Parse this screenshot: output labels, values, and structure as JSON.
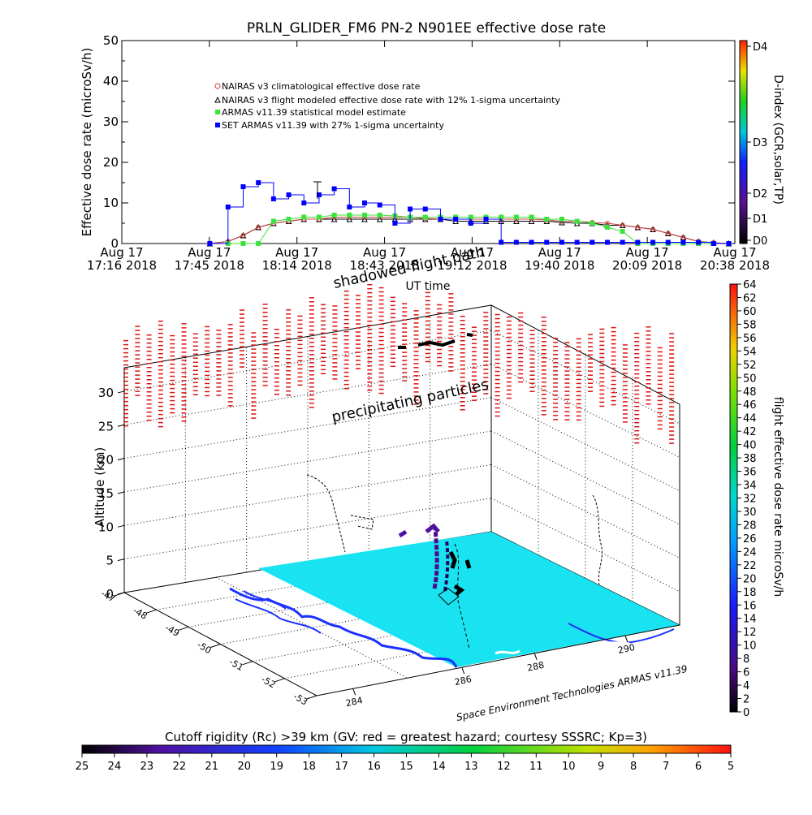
{
  "title": "PRLN_GLIDER_FM6 PN-2 N901EE effective dose rate",
  "colors": {
    "nairas_clim": "#d04040",
    "nairas_flight": "#000000",
    "armas_model": "#3ce33c",
    "set_armas": "#0000ff",
    "terrain": "#19e3f0",
    "coast": "#1a30ff",
    "dose_dash": "#dd1111"
  },
  "dose_chart": {
    "ylabel": "Effective dose rate (microSv/h)",
    "xlabel": "UT time",
    "y_ticks": [
      "0",
      "10",
      "20",
      "30",
      "40",
      "50"
    ],
    "ylim": [
      0,
      50
    ],
    "x_ticks": [
      {
        "top": "Aug 17",
        "bottom": "17:16 2018"
      },
      {
        "top": "Aug 17",
        "bottom": "17:45 2018"
      },
      {
        "top": "Aug 17",
        "bottom": "18:14 2018"
      },
      {
        "top": "Aug 17",
        "bottom": "18:43 2018"
      },
      {
        "top": "Aug 17",
        "bottom": "19:12 2018"
      },
      {
        "top": "Aug 17",
        "bottom": "19:40 2018"
      },
      {
        "top": "Aug 17",
        "bottom": "20:09 2018"
      },
      {
        "top": "Aug 17",
        "bottom": "20:38 2018"
      }
    ],
    "legend": [
      "NAIRAS v3 climatological effective dose rate",
      "NAIRAS v3 flight modeled effective dose rate with 12% 1-sigma uncertainty",
      "ARMAS v11.39 statistical model estimate",
      "SET ARMAS v11.39 with 27% 1-sigma uncertainty"
    ],
    "right_axis_label": "D-index (GCR,solar,TP)",
    "right_axis_ticks": [
      "D0",
      "D1",
      "D2",
      "D3",
      "D4"
    ]
  },
  "chart_data": [
    {
      "type": "line",
      "title": "PRLN_GLIDER_FM6 PN-2 N901EE effective dose rate",
      "xlabel": "UT time",
      "ylabel": "Effective dose rate (microSv/h)",
      "ylim": [
        0,
        50
      ],
      "x_unit": "minutes after 17:16 UT",
      "x": [
        29,
        35,
        40,
        45,
        50,
        55,
        60,
        65,
        70,
        75,
        80,
        85,
        90,
        95,
        100,
        105,
        110,
        115,
        120,
        125,
        130,
        135,
        140,
        145,
        150,
        155,
        160,
        165,
        170,
        175,
        180,
        185,
        190,
        195,
        200
      ],
      "series": [
        {
          "name": "NAIRAS v3 flight modeled effective dose rate with 12% 1-sigma uncertainty",
          "values": [
            0,
            0.5,
            2,
            4,
            5,
            5.5,
            6,
            6,
            6,
            6,
            6,
            6,
            6,
            6,
            6,
            6,
            5.5,
            5.5,
            5.5,
            5.5,
            5.5,
            5.5,
            5.5,
            5.2,
            5,
            5,
            4.5,
            4.5,
            4,
            3.5,
            2.5,
            1.5,
            0.5,
            0.2,
            0
          ]
        },
        {
          "name": "NAIRAS v3 climatological effective dose rate",
          "values": [
            0,
            0.5,
            2,
            4,
            5,
            5.5,
            6,
            6,
            6.5,
            6.5,
            6.5,
            6.5,
            6.5,
            6.5,
            6.2,
            6,
            6,
            6,
            6,
            6,
            6,
            6,
            5.8,
            5.5,
            5.5,
            5.2,
            5,
            4.5,
            4,
            3.5,
            2.5,
            1.5,
            0.5,
            0.2,
            0
          ]
        },
        {
          "name": "ARMAS v11.39 statistical model estimate",
          "values": [
            0,
            0,
            0,
            0,
            5.5,
            6,
            6.5,
            6.5,
            7,
            7,
            7,
            7,
            6.8,
            6.5,
            6.5,
            6.5,
            6.5,
            6.5,
            6.5,
            6.5,
            6.5,
            6.5,
            6,
            6,
            5.5,
            5,
            4,
            3,
            0,
            0,
            0,
            0,
            0,
            0,
            0
          ]
        },
        {
          "name": "SET ARMAS v11.39 with 27% 1-sigma uncertainty",
          "values": [
            0,
            9,
            14,
            15,
            11,
            12,
            10,
            12,
            13.5,
            9,
            10,
            9.5,
            5,
            8.5,
            8.5,
            6,
            6,
            5,
            6,
            0.3,
            0.3,
            0.3,
            0.3,
            0.3,
            0.3,
            0.3,
            0.3,
            0.3,
            0.3,
            0.3,
            0.3,
            0.3,
            0.3,
            0,
            0
          ]
        }
      ]
    }
  ],
  "scene": {
    "zlabel": "Altitude (km)",
    "z_ticks": [
      "0",
      "5",
      "10",
      "15",
      "20",
      "25",
      "30"
    ],
    "lat_ticks": [
      "-47",
      "-48",
      "-49",
      "-50",
      "-51",
      "-52",
      "-53"
    ],
    "lon_ticks": [
      "284",
      "286",
      "288",
      "290"
    ],
    "shadowed_label": "shadowed flight path",
    "precip_label": "precipitating particles",
    "credit": "Space Environment Technologies ARMAS v11.39"
  },
  "right_colorbar": {
    "label": "flight effective dose rate microSv/h",
    "ticks": [
      "0",
      "2",
      "4",
      "6",
      "8",
      "10",
      "12",
      "14",
      "16",
      "18",
      "20",
      "22",
      "24",
      "26",
      "28",
      "30",
      "32",
      "34",
      "36",
      "38",
      "40",
      "42",
      "44",
      "46",
      "48",
      "50",
      "52",
      "54",
      "56",
      "58",
      "60",
      "62",
      "64"
    ]
  },
  "bottom_colorbar": {
    "title": "Cutoff rigidity (Rc) >39 km (GV: red = greatest hazard; courtesy SSSRC; Kp=3)",
    "ticks": [
      "25",
      "24",
      "23",
      "22",
      "21",
      "20",
      "19",
      "18",
      "17",
      "16",
      "15",
      "14",
      "13",
      "12",
      "11",
      "10",
      "9",
      "8",
      "7",
      "6",
      "5"
    ]
  }
}
